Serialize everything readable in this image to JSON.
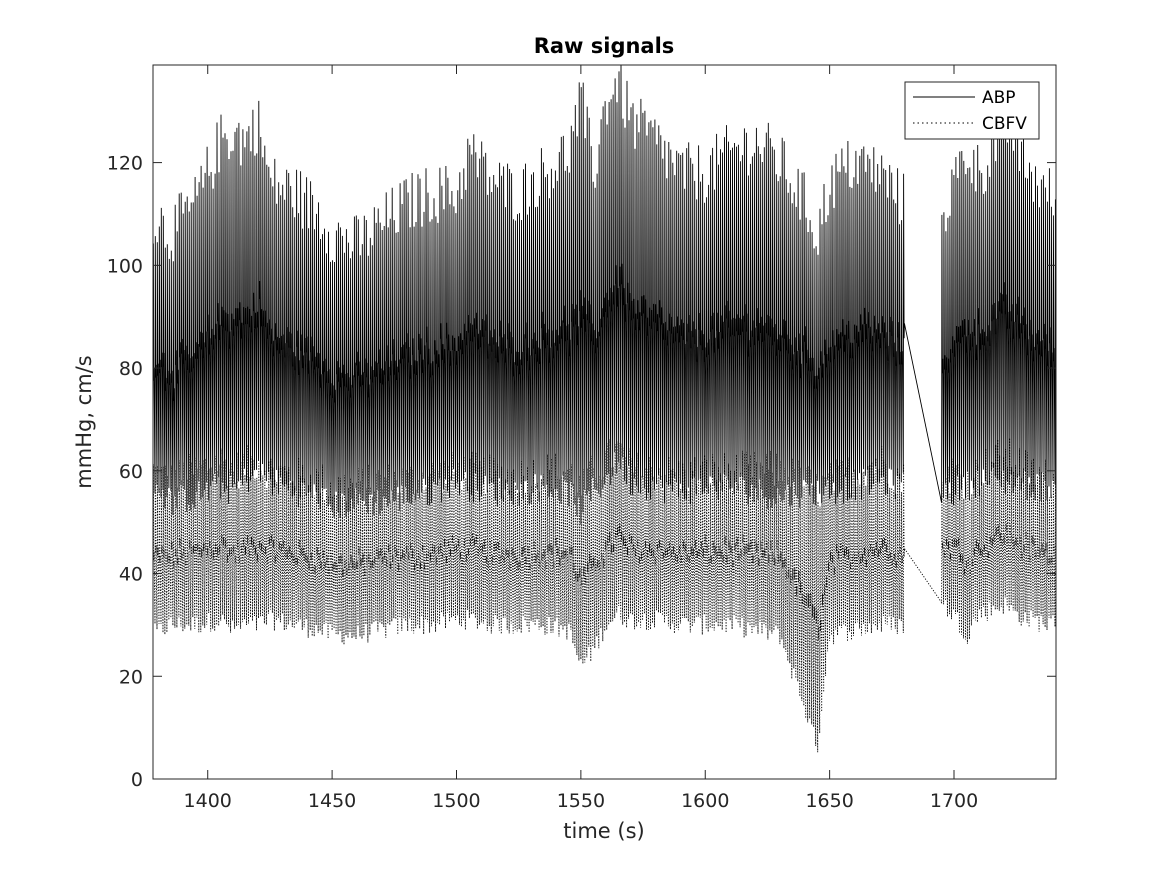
{
  "chart_data": {
    "type": "line",
    "title": "Raw signals",
    "xlabel": "time (s)",
    "ylabel": "mmHg, cm/s",
    "xlim": [
      1378,
      1741
    ],
    "ylim": [
      0,
      139
    ],
    "x_ticks": [
      1400,
      1450,
      1500,
      1550,
      1600,
      1650,
      1700
    ],
    "y_ticks": [
      0,
      20,
      40,
      60,
      80,
      100,
      120
    ],
    "grid": false,
    "legend_position": "top-right",
    "gap": {
      "start": 1680,
      "end": 1695
    },
    "series": [
      {
        "name": "ABP",
        "line_style": "solid",
        "color": "#000000",
        "beat_period_s": 0.8,
        "envelope_t": [
          1378,
          1385,
          1395,
          1405,
          1410,
          1415,
          1420,
          1425,
          1435,
          1445,
          1450,
          1460,
          1470,
          1480,
          1490,
          1500,
          1505,
          1515,
          1525,
          1535,
          1545,
          1550,
          1555,
          1560,
          1565,
          1570,
          1580,
          1590,
          1600,
          1610,
          1620,
          1630,
          1640,
          1645,
          1650,
          1660,
          1670,
          1680,
          1695,
          1700,
          1705,
          1710,
          1715,
          1720,
          1725,
          1730,
          1741
        ],
        "systolic": [
          110,
          106,
          112,
          124,
          126,
          124,
          128,
          116,
          114,
          110,
          106,
          104,
          108,
          112,
          114,
          114,
          122,
          116,
          114,
          118,
          122,
          132,
          118,
          132,
          136,
          128,
          124,
          118,
          118,
          122,
          124,
          120,
          112,
          106,
          116,
          120,
          118,
          112,
          110,
          116,
          122,
          118,
          122,
          128,
          124,
          118,
          112
        ],
        "diastolic": [
          58,
          54,
          55,
          57,
          56,
          58,
          60,
          58,
          56,
          55,
          53,
          54,
          54,
          55,
          56,
          58,
          57,
          56,
          56,
          57,
          56,
          52,
          56,
          58,
          62,
          58,
          57,
          56,
          57,
          57,
          56,
          55,
          56,
          56,
          56,
          57,
          58,
          57,
          56,
          56,
          57,
          58,
          58,
          58,
          58,
          57,
          57
        ]
      },
      {
        "name": "CBFV",
        "line_style": "dotted",
        "color": "#000000",
        "beat_period_s": 0.8,
        "envelope_t": [
          1378,
          1385,
          1395,
          1405,
          1410,
          1415,
          1420,
          1425,
          1435,
          1445,
          1450,
          1460,
          1470,
          1480,
          1490,
          1500,
          1505,
          1515,
          1525,
          1535,
          1545,
          1550,
          1555,
          1560,
          1565,
          1570,
          1580,
          1590,
          1600,
          1610,
          1620,
          1630,
          1640,
          1645,
          1650,
          1660,
          1670,
          1680,
          1695,
          1700,
          1705,
          1710,
          1715,
          1720,
          1725,
          1730,
          1741
        ],
        "systolic": [
          60,
          58,
          60,
          62,
          60,
          61,
          62,
          60,
          59,
          58,
          57,
          57,
          58,
          58,
          59,
          60,
          60,
          59,
          59,
          60,
          60,
          56,
          60,
          62,
          64,
          60,
          60,
          59,
          60,
          60,
          60,
          60,
          58,
          56,
          58,
          60,
          62,
          58,
          58,
          60,
          58,
          60,
          62,
          63,
          62,
          60,
          58
        ],
        "diastolic": [
          28,
          30,
          30,
          31,
          29,
          30,
          30,
          31,
          30,
          29,
          28,
          28,
          29,
          30,
          30,
          31,
          31,
          30,
          30,
          30,
          29,
          22,
          25,
          30,
          32,
          31,
          31,
          30,
          30,
          30,
          29,
          28,
          14,
          6,
          28,
          29,
          30,
          30,
          34,
          32,
          28,
          32,
          33,
          34,
          32,
          31,
          30
        ]
      }
    ]
  }
}
